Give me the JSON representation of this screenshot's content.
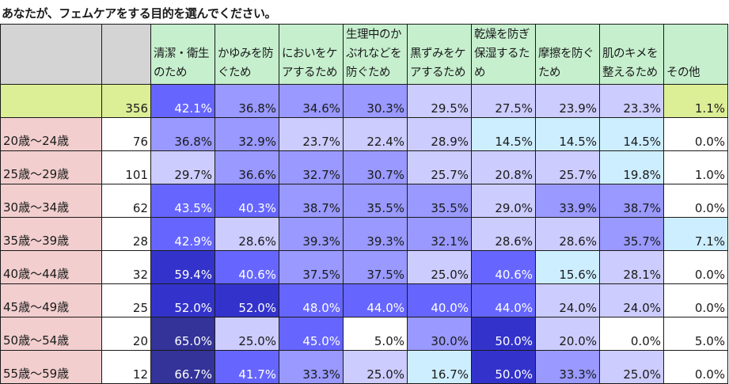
{
  "title": "あなたが、フェムケアをする目的を選んでください。",
  "columns": [
    "清潔・衛生のため",
    "かゆみを防ぐため",
    "においをケアするため",
    "生理中のかぶれなどを防ぐため",
    "黒ずみをケアするため",
    "乾燥を防ぎ保湿するため",
    "摩擦を防ぐため",
    "肌のキメを整えるため",
    "その他"
  ],
  "rows": [
    {
      "label": "",
      "n": "356",
      "values": [
        "42.1%",
        "36.8%",
        "34.6%",
        "30.3%",
        "29.5%",
        "27.5%",
        "23.9%",
        "23.3%",
        "1.1%"
      ],
      "total": true
    },
    {
      "label": "20歳～24歳",
      "n": "76",
      "values": [
        "36.8%",
        "32.9%",
        "23.7%",
        "22.4%",
        "28.9%",
        "14.5%",
        "14.5%",
        "14.5%",
        "0.0%"
      ]
    },
    {
      "label": "25歳～29歳",
      "n": "101",
      "values": [
        "29.7%",
        "36.6%",
        "32.7%",
        "30.7%",
        "25.7%",
        "20.8%",
        "25.7%",
        "19.8%",
        "1.0%"
      ]
    },
    {
      "label": "30歳～34歳",
      "n": "62",
      "values": [
        "43.5%",
        "40.3%",
        "38.7%",
        "35.5%",
        "35.5%",
        "29.0%",
        "33.9%",
        "38.7%",
        "0.0%"
      ]
    },
    {
      "label": "35歳～39歳",
      "n": "28",
      "values": [
        "42.9%",
        "28.6%",
        "39.3%",
        "39.3%",
        "32.1%",
        "28.6%",
        "28.6%",
        "35.7%",
        "7.1%"
      ]
    },
    {
      "label": "40歳～44歳",
      "n": "32",
      "values": [
        "59.4%",
        "40.6%",
        "37.5%",
        "37.5%",
        "25.0%",
        "40.6%",
        "15.6%",
        "28.1%",
        "0.0%"
      ]
    },
    {
      "label": "45歳～49歳",
      "n": "25",
      "values": [
        "52.0%",
        "52.0%",
        "48.0%",
        "44.0%",
        "40.0%",
        "44.0%",
        "24.0%",
        "24.0%",
        "0.0%"
      ]
    },
    {
      "label": "50歳～54歳",
      "n": "20",
      "values": [
        "65.0%",
        "25.0%",
        "45.0%",
        "5.0%",
        "30.0%",
        "50.0%",
        "20.0%",
        "0.0%",
        "5.0%"
      ]
    },
    {
      "label": "55歳～59歳",
      "n": "12",
      "values": [
        "66.7%",
        "41.7%",
        "33.3%",
        "25.0%",
        "16.7%",
        "50.0%",
        "33.3%",
        "25.0%",
        "0.0%"
      ]
    }
  ],
  "colors": {
    "header_bg": "#c6efce",
    "blank_header_bg": "#d4d4d4",
    "row_label_bg": "#f2cece",
    "total_bg": "#dcee96",
    "scale": [
      "#ffffff",
      "#cdeeff",
      "#ccccff",
      "#9999ff",
      "#6666ff",
      "#3333cc",
      "#333399"
    ]
  }
}
